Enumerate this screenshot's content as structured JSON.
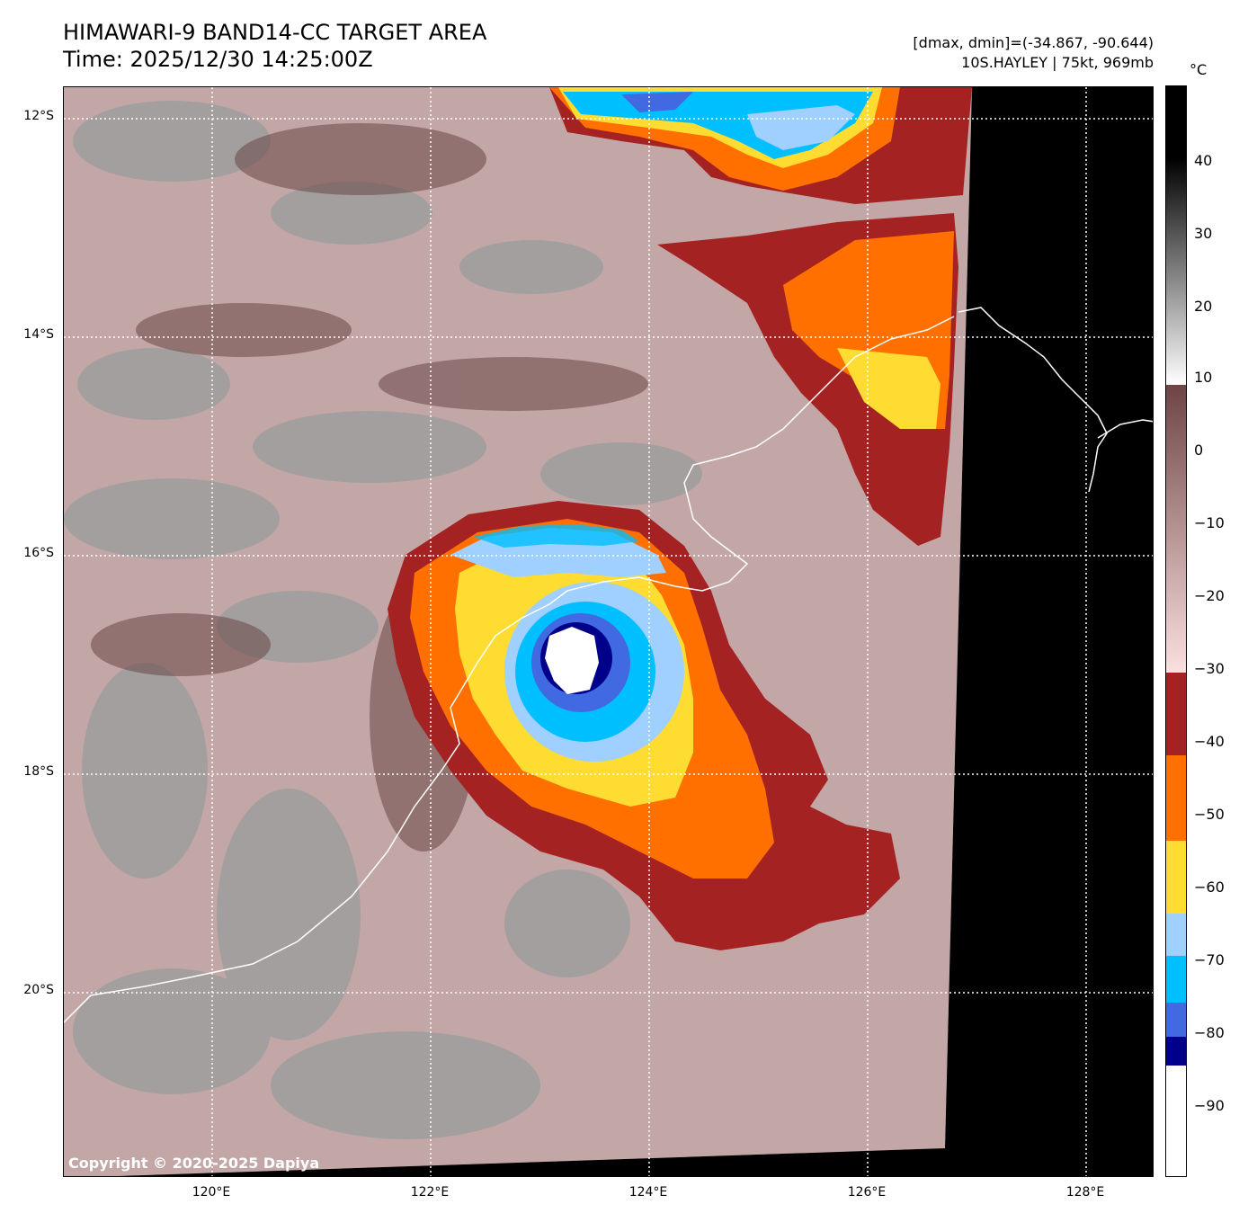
{
  "header": {
    "title_line1": "HIMAWARI-9 BAND14-CC TARGET AREA",
    "title_line2": "Time: 2025/12/30 14:25:00Z",
    "info_line1": "[dmax, dmin]=(-34.867, -90.644)",
    "info_line2": "10S.HAYLEY | 75kt, 969mb"
  },
  "map": {
    "lat_labels": [
      "12°S",
      "14°S",
      "16°S",
      "18°S",
      "20°S"
    ],
    "lon_labels": [
      "120°E",
      "122°E",
      "124°E",
      "126°E",
      "128°E"
    ],
    "copyright": "Copyright © 2020-2025 Dapiya"
  },
  "colorbar": {
    "unit": "°C",
    "tick_labels": [
      "40",
      "30",
      "20",
      "10",
      "0",
      "−10",
      "−20",
      "−30",
      "−40",
      "−50",
      "−60",
      "−70",
      "−80",
      "−90"
    ],
    "bands": [
      {
        "range": "40-50",
        "color": "#000000"
      },
      {
        "range": "10-30",
        "color": "#888888"
      },
      {
        "range": "-30-10",
        "color": "#7a4a4a"
      },
      {
        "range": "-40--30",
        "color": "#a52222"
      },
      {
        "range": "-50--40",
        "color": "#ff7000"
      },
      {
        "range": "-60--50",
        "color": "#ffdc32"
      },
      {
        "range": "-65--60",
        "color": "#a0d0ff"
      },
      {
        "range": "-75--65",
        "color": "#00bfff"
      },
      {
        "range": "-80--75",
        "color": "#4169e1"
      },
      {
        "range": "-84--80",
        "color": "#00008b"
      },
      {
        "range": "below -84",
        "color": "#ffffff"
      }
    ]
  }
}
